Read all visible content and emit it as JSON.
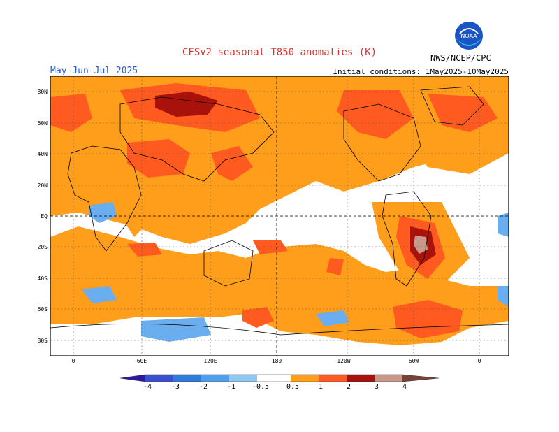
{
  "header": {
    "title": "CFSv2 seasonal T850 anomalies (K)",
    "period": "May-Jun-Jul 2025",
    "initial_conditions": "Initial conditions: 1May2025-10May2025",
    "organization": "NWS/NCEP/CPC",
    "logo_text": "NOAA"
  },
  "map": {
    "lat_labels": [
      "80N",
      "60N",
      "40N",
      "20N",
      "EQ",
      "20S",
      "40S",
      "60S",
      "80S"
    ],
    "lon_labels": [
      "0",
      "60E",
      "120E",
      "180",
      "120W",
      "60W",
      "0"
    ]
  },
  "colorbar": {
    "labels": [
      "-4",
      "-3",
      "-2",
      "-1",
      "-0.5",
      "0.5",
      "1",
      "2",
      "3",
      "4"
    ],
    "colors": [
      "#2a1aa0",
      "#3a4fd0",
      "#2f7bdc",
      "#4f9ff0",
      "#8ec6f4",
      "#ffffff",
      "#ff9e1b",
      "#ff5a1f",
      "#e02a10",
      "#a8120a",
      "#c8988a",
      "#7a4236"
    ]
  }
}
